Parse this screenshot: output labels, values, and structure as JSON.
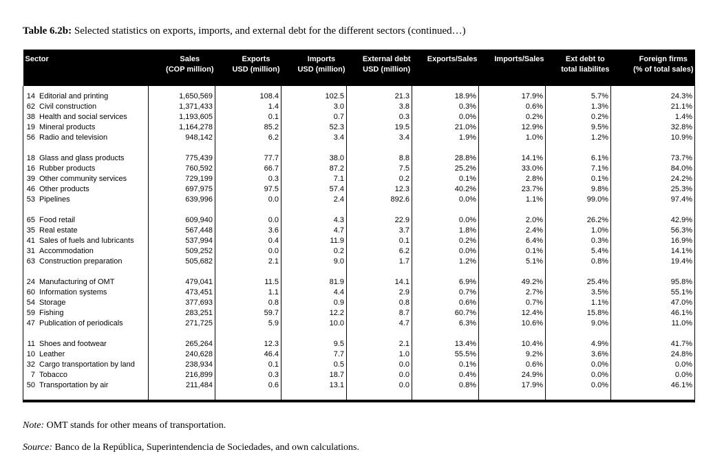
{
  "title": {
    "label": "Table 6.2b:",
    "text": "Selected statistics on exports, imports, and external debt for the different sectors (continued…)"
  },
  "table": {
    "columns": [
      {
        "key": "sector",
        "line1": "Sector",
        "line2": ""
      },
      {
        "key": "sales",
        "line1": "Sales",
        "line2": "(COP million)"
      },
      {
        "key": "exports",
        "line1": "Exports",
        "line2": "USD (million)"
      },
      {
        "key": "imports",
        "line1": "Imports",
        "line2": "USD (million)"
      },
      {
        "key": "external-debt",
        "line1": "External debt",
        "line2": "USD (million)"
      },
      {
        "key": "exports-sales",
        "line1": "Exports/Sales",
        "line2": ""
      },
      {
        "key": "imports-sales",
        "line1": "Imports/Sales",
        "line2": ""
      },
      {
        "key": "ext-debt-ratio",
        "line1": "Ext debt to",
        "line2": "total liabilites"
      },
      {
        "key": "foreign-firms",
        "line1": "Foreign firms",
        "line2": "(% of total sales)"
      }
    ],
    "groups": [
      {
        "rows": [
          {
            "code": "14",
            "name": "Editorial and printing",
            "values": [
              "1,650,569",
              "108.4",
              "102.5",
              "21.3",
              "18.9%",
              "17.9%",
              "5.7%",
              "24.3%"
            ]
          },
          {
            "code": "62",
            "name": "Civil construction",
            "values": [
              "1,371,433",
              "1.4",
              "3.0",
              "3.8",
              "0.3%",
              "0.6%",
              "1.3%",
              "21.1%"
            ]
          },
          {
            "code": "38",
            "name": "Health and social services",
            "values": [
              "1,193,605",
              "0.1",
              "0.7",
              "0.3",
              "0.0%",
              "0.2%",
              "0.2%",
              "1.4%"
            ]
          },
          {
            "code": "19",
            "name": "Mineral products",
            "values": [
              "1,164,278",
              "85.2",
              "52.3",
              "19.5",
              "21.0%",
              "12.9%",
              "9.5%",
              "32.8%"
            ]
          },
          {
            "code": "56",
            "name": "Radio and television",
            "values": [
              "948,142",
              "6.2",
              "3.4",
              "3.4",
              "1.9%",
              "1.0%",
              "1.2%",
              "10.9%"
            ]
          }
        ]
      },
      {
        "rows": [
          {
            "code": "18",
            "name": "Glass and glass products",
            "values": [
              "775,439",
              "77.7",
              "38.0",
              "8.8",
              "28.8%",
              "14.1%",
              "6.1%",
              "73.7%"
            ]
          },
          {
            "code": "16",
            "name": "Rubber products",
            "values": [
              "760,592",
              "66.7",
              "87.2",
              "7.5",
              "25.2%",
              "33.0%",
              "7.1%",
              "84.0%"
            ]
          },
          {
            "code": "39",
            "name": "Other community services",
            "values": [
              "729,199",
              "0.3",
              "7.1",
              "0.2",
              "0.1%",
              "2.8%",
              "0.1%",
              "24.2%"
            ]
          },
          {
            "code": "46",
            "name": "Other products",
            "values": [
              "697,975",
              "97.5",
              "57.4",
              "12.3",
              "40.2%",
              "23.7%",
              "9.8%",
              "25.3%"
            ]
          },
          {
            "code": "53",
            "name": "Pipelines",
            "values": [
              "639,996",
              "0.0",
              "2.4",
              "892.6",
              "0.0%",
              "1.1%",
              "99.0%",
              "97.4%"
            ]
          }
        ]
      },
      {
        "rows": [
          {
            "code": "65",
            "name": "Food retail",
            "values": [
              "609,940",
              "0.0",
              "4.3",
              "22.9",
              "0.0%",
              "2.0%",
              "26.2%",
              "42.9%"
            ]
          },
          {
            "code": "35",
            "name": "Real estate",
            "values": [
              "567,448",
              "3.6",
              "4.7",
              "3.7",
              "1.8%",
              "2.4%",
              "1.0%",
              "56.3%"
            ]
          },
          {
            "code": "41",
            "name": "Sales of fuels and lubricants",
            "values": [
              "537,994",
              "0.4",
              "11.9",
              "0.1",
              "0.2%",
              "6.4%",
              "0.3%",
              "16.9%"
            ]
          },
          {
            "code": "31",
            "name": "Accommodation",
            "values": [
              "509,252",
              "0.0",
              "0.2",
              "6.2",
              "0.0%",
              "0.1%",
              "5.4%",
              "14.1%"
            ]
          },
          {
            "code": "63",
            "name": "Construction preparation",
            "values": [
              "505,682",
              "2.1",
              "9.0",
              "1.7",
              "1.2%",
              "5.1%",
              "0.8%",
              "19.4%"
            ]
          }
        ]
      },
      {
        "rows": [
          {
            "code": "24",
            "name": "Manufacturing of OMT",
            "values": [
              "479,041",
              "11.5",
              "81.9",
              "14.1",
              "6.9%",
              "49.2%",
              "25.4%",
              "95.8%"
            ]
          },
          {
            "code": "60",
            "name": "Information systems",
            "values": [
              "473,451",
              "1.1",
              "4.4",
              "2.9",
              "0.7%",
              "2.7%",
              "3.5%",
              "55.1%"
            ]
          },
          {
            "code": "54",
            "name": "Storage",
            "values": [
              "377,693",
              "0.8",
              "0.9",
              "0.8",
              "0.6%",
              "0.7%",
              "1.1%",
              "47.0%"
            ]
          },
          {
            "code": "59",
            "name": "Fishing",
            "values": [
              "283,251",
              "59.7",
              "12.2",
              "8.7",
              "60.7%",
              "12.4%",
              "15.8%",
              "46.1%"
            ]
          },
          {
            "code": "47",
            "name": "Publication of periodicals",
            "values": [
              "271,725",
              "5.9",
              "10.0",
              "4.7",
              "6.3%",
              "10.6%",
              "9.0%",
              "11.0%"
            ]
          }
        ]
      },
      {
        "rows": [
          {
            "code": "11",
            "name": "Shoes and footwear",
            "values": [
              "265,264",
              "12.3",
              "9.5",
              "2.1",
              "13.4%",
              "10.4%",
              "4.9%",
              "41.7%"
            ]
          },
          {
            "code": "10",
            "name": "Leather",
            "values": [
              "240,628",
              "46.4",
              "7.7",
              "1.0",
              "55.5%",
              "9.2%",
              "3.6%",
              "24.8%"
            ]
          },
          {
            "code": "32",
            "name": "Cargo transportation by land",
            "values": [
              "238,934",
              "0.1",
              "0.5",
              "0.0",
              "0.1%",
              "0.6%",
              "0.0%",
              "0.0%"
            ]
          },
          {
            "code": "7",
            "name": "Tobacco",
            "values": [
              "216,899",
              "0.3",
              "18.7",
              "0.0",
              "0.4%",
              "24.9%",
              "0.0%",
              "0.0%"
            ]
          },
          {
            "code": "50",
            "name": "Transportation by air",
            "values": [
              "211,484",
              "0.6",
              "13.1",
              "0.0",
              "0.8%",
              "17.9%",
              "0.0%",
              "46.1%"
            ]
          }
        ]
      }
    ]
  },
  "notes": [
    {
      "label": "Note:",
      "text": "OMT stands for other means of transportation."
    },
    {
      "label": "Source:",
      "text": "Banco de la República, Superintendencia de Sociedades, and own calculations."
    }
  ]
}
